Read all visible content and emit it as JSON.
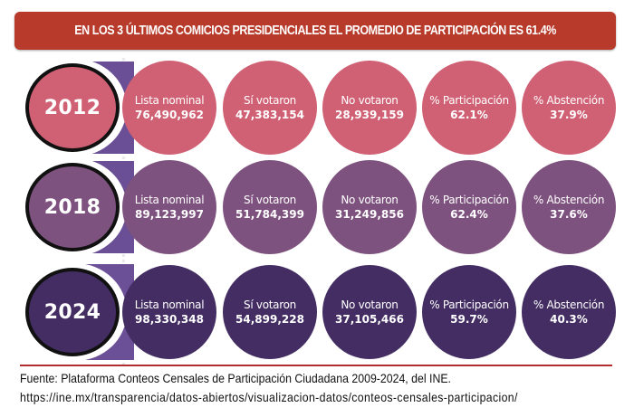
{
  "header": {
    "title": "EN LOS 3 ÚLTIMOS COMICIOS PRESIDENCIALES EL PROMEDIO DE PARTICIPACIÓN ES 61.4%",
    "background_color": "#b83a2a"
  },
  "rows": [
    {
      "year": "2012",
      "color": "#d06074",
      "metrics": [
        {
          "label": "Lista nominal",
          "value": "76,490,962"
        },
        {
          "label": "Sí votaron",
          "value": "47,383,154"
        },
        {
          "label": "No votaron",
          "value": "28,939,159"
        },
        {
          "label": "% Participación",
          "value": "62.1%"
        },
        {
          "label": "% Abstención",
          "value": "37.9%"
        }
      ]
    },
    {
      "year": "2018",
      "color": "#7e527e",
      "metrics": [
        {
          "label": "Lista nominal",
          "value": "89,123,997"
        },
        {
          "label": "Sí votaron",
          "value": "51,784,399"
        },
        {
          "label": "No votaron",
          "value": "31,249,856"
        },
        {
          "label": "% Participación",
          "value": "62.4%"
        },
        {
          "label": "% Abstención",
          "value": "37.6%"
        }
      ]
    },
    {
      "year": "2024",
      "color": "#432d63",
      "metrics": [
        {
          "label": "Lista nominal",
          "value": "98,330,348"
        },
        {
          "label": "Sí votaron",
          "value": "54,899,228"
        },
        {
          "label": "No votaron",
          "value": "37,105,466"
        },
        {
          "label": "% Participación",
          "value": "59.7%"
        },
        {
          "label": "% Abstención",
          "value": "40.3%"
        }
      ]
    }
  ],
  "footer": {
    "source": "Fuente: Plataforma Conteos Censales de Participación Ciudadana 2009-2024, del INE.",
    "url": "https://ine.mx/transparencia/datos-abiertos/visualizacion-datos/conteos-censales-participacion/"
  }
}
